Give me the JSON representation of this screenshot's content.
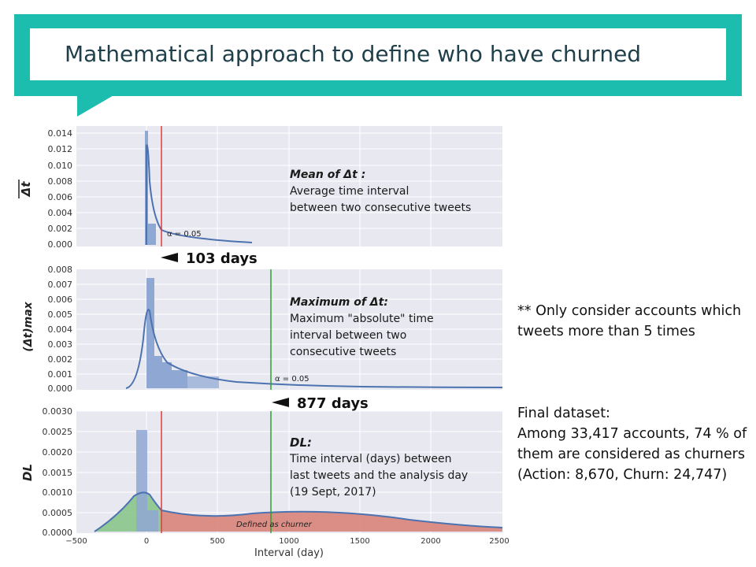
{
  "title": "Mathematical approach to define who have churned",
  "note_only": "** Only consider accounts which tweets more than 5 times",
  "note_final": "Final dataset:\nAmong 33,417 accounts, 74 % of them are considered as churners\n(Action: 8,670, Churn: 24,747)",
  "colors": {
    "accent": "#1cbcae",
    "panel": "#e8e9f0",
    "bars": "#8fa7d3",
    "kde": "#4c72b0",
    "red": "#e03a3a",
    "green": "#2ca02c"
  },
  "chart_data": [
    {
      "type": "bar",
      "ylabel": "Δt",
      "ylim": [
        0,
        0.014
      ],
      "yticks": [
        "0.014",
        "0.012",
        "0.010",
        "0.008",
        "0.006",
        "0.004",
        "0.002",
        "0.000"
      ],
      "annotation_title": "Mean of Δt :",
      "annotation_lines": [
        "Average time interval",
        "between two consecutive tweets"
      ],
      "alpha_label": "α = 0.05",
      "threshold_label": "103 days",
      "threshold": 103
    },
    {
      "type": "bar",
      "ylabel": "(Δt)max",
      "ylim": [
        0,
        0.008
      ],
      "yticks": [
        "0.008",
        "0.007",
        "0.006",
        "0.005",
        "0.004",
        "0.003",
        "0.002",
        "0.001",
        "0.000"
      ],
      "annotation_title": "Maximum of Δt:",
      "annotation_lines": [
        "Maximum \"absolute\" time",
        "interval between two",
        "consecutive tweets"
      ],
      "alpha_label": "α = 0.05",
      "threshold_label": "877 days",
      "threshold": 877
    },
    {
      "type": "bar",
      "ylabel": "DL",
      "ylim": [
        0,
        0.003
      ],
      "yticks": [
        "0.0030",
        "0.0025",
        "0.0020",
        "0.0015",
        "0.0010",
        "0.0005",
        "0.0000"
      ],
      "annotation_title": "DL:",
      "annotation_lines": [
        "Time interval (days) between",
        "last tweets and the analysis day",
        "(19 Sept, 2017)"
      ],
      "region_label": "Defined as churner",
      "xticks": [
        "−500",
        "0",
        "500",
        "1000",
        "1500",
        "2000",
        "2500"
      ],
      "xlabel": "Interval (day)"
    }
  ]
}
